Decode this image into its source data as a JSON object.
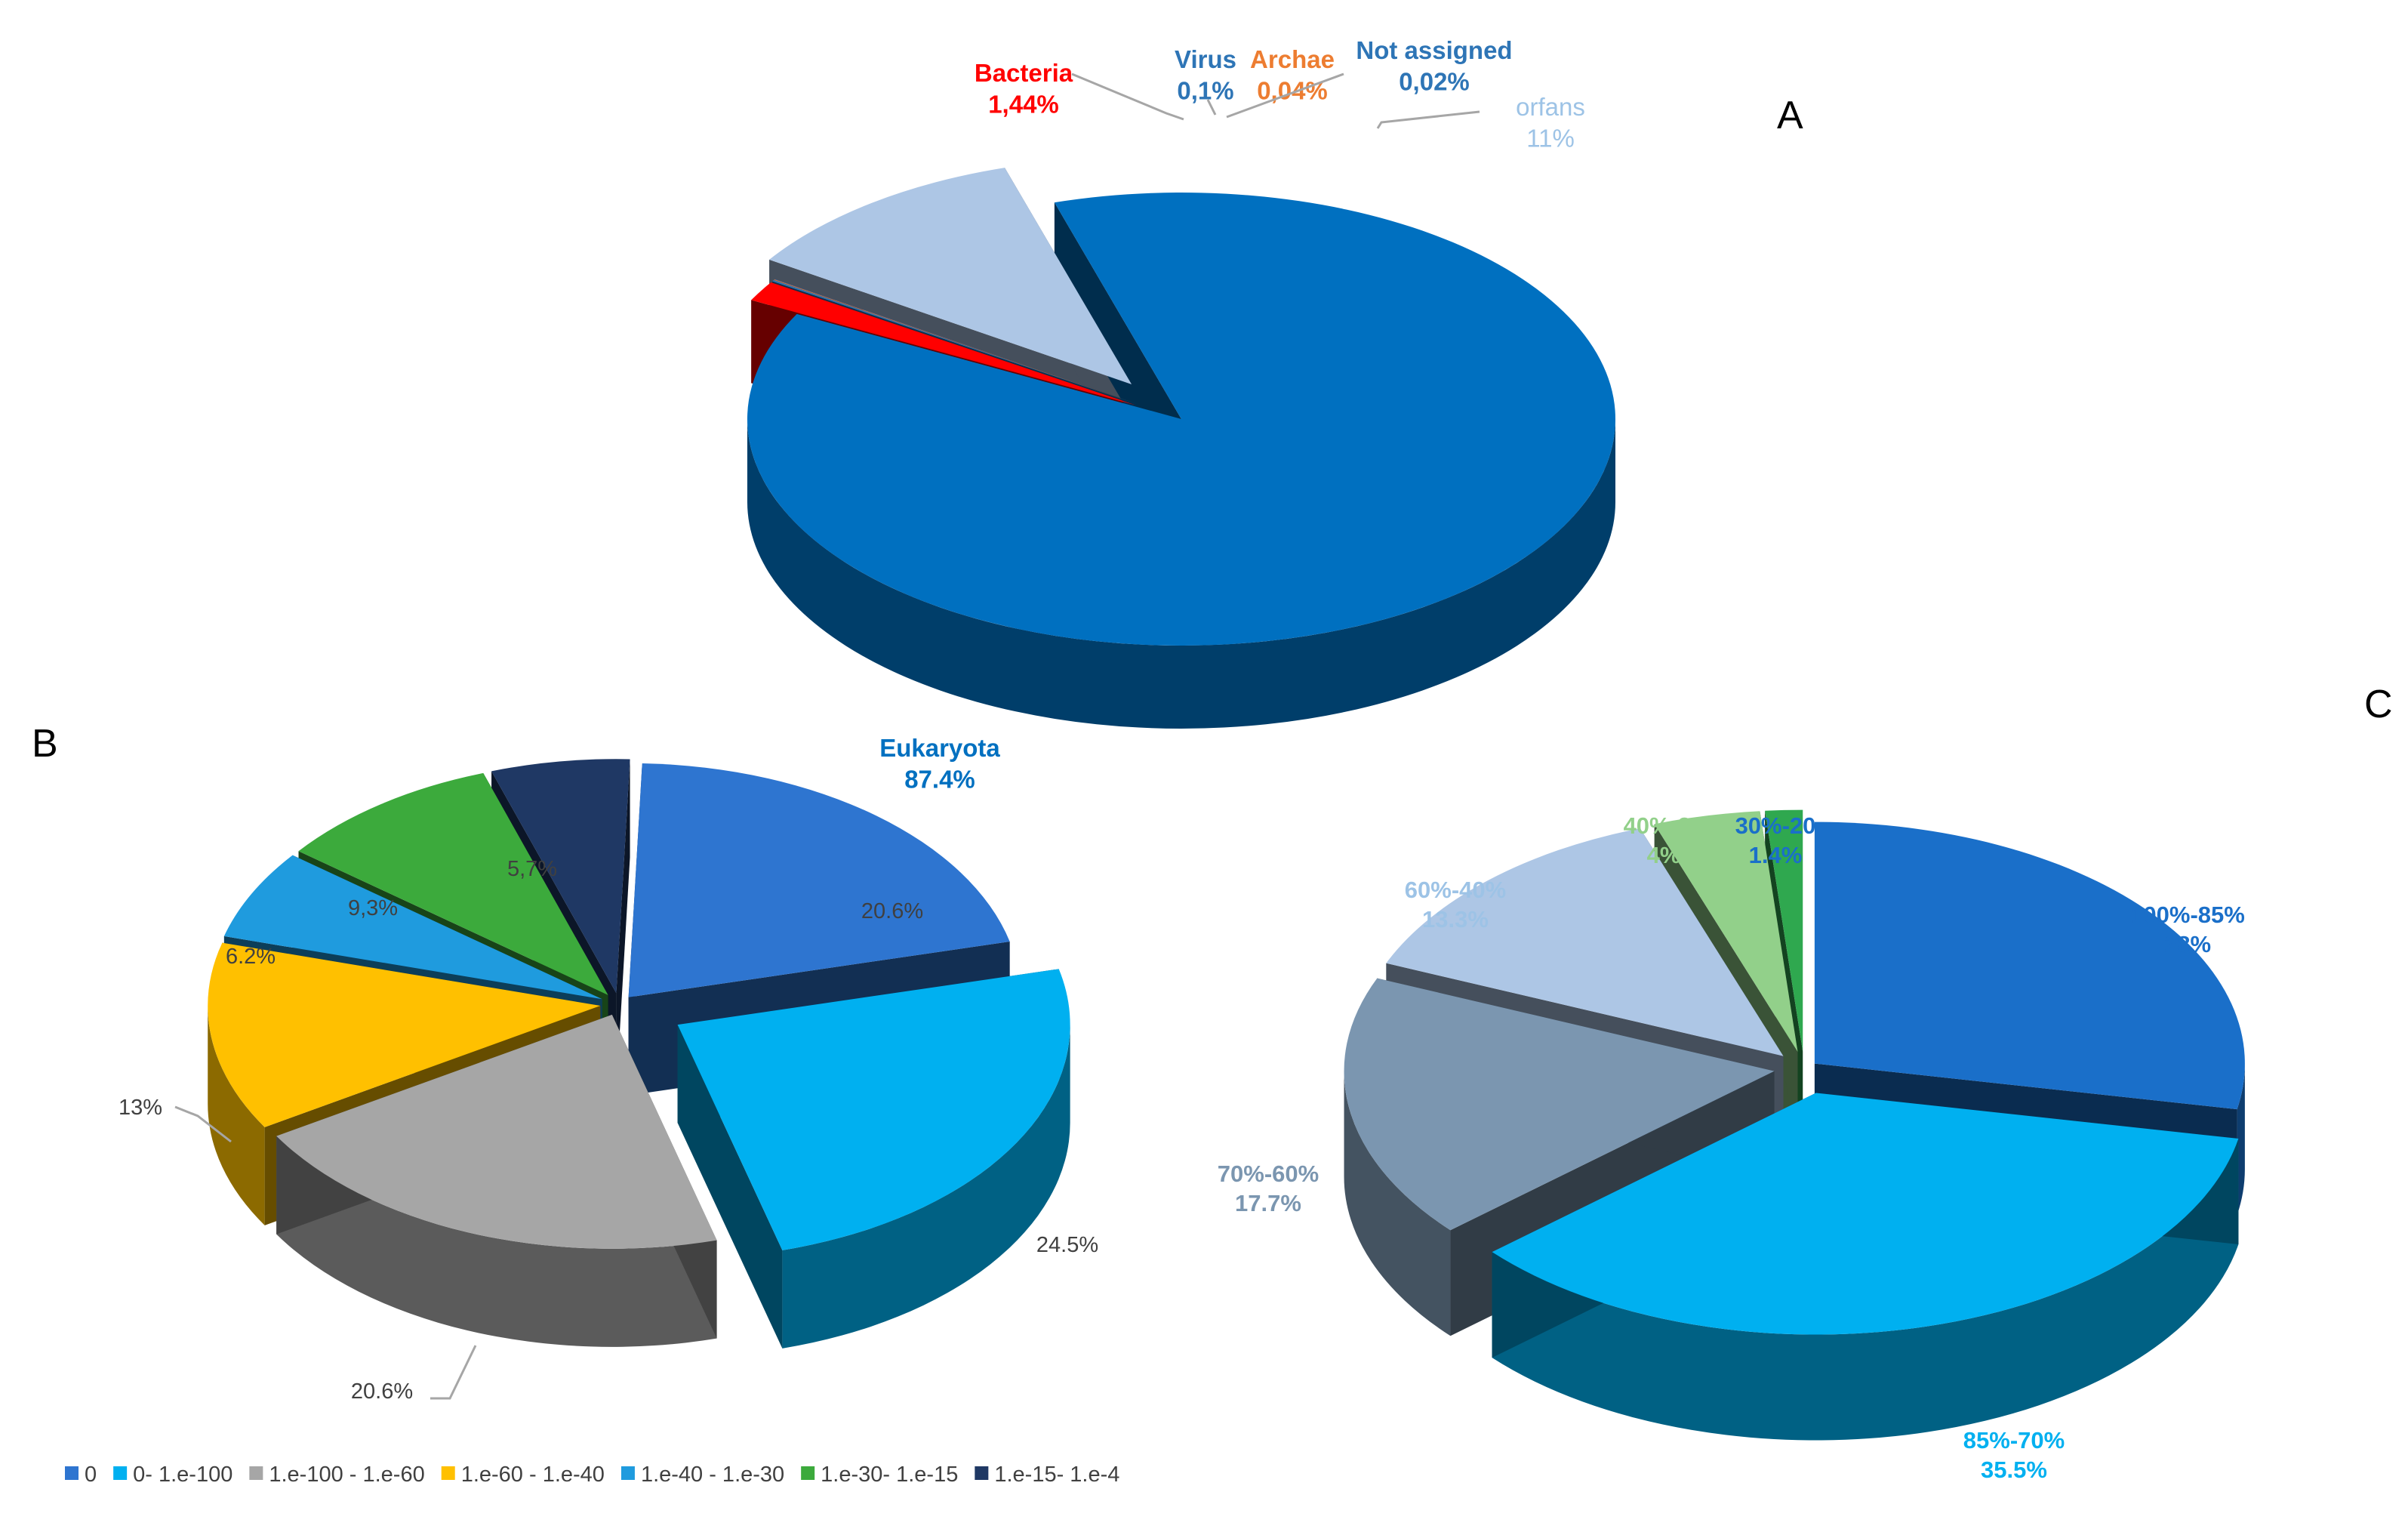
{
  "chart_data": [
    {
      "type": "pie",
      "panel": "A",
      "categories": [
        "Eukaryota",
        "Bacteria",
        "Virus",
        "Archae",
        "Not assigned",
        "orfans"
      ],
      "values": [
        87.4,
        1.44,
        0.1,
        0.04,
        0.02,
        11
      ],
      "value_labels": [
        "87.4%",
        "1,44%",
        "0,1%",
        "0,04%",
        "0,02%",
        "11%"
      ],
      "colors": [
        "#0070C0",
        "#FF0000",
        "#2E75B6",
        "#ED7D31",
        "#4472C4",
        "#ADC6E5"
      ],
      "label_colors": [
        "#0070C0",
        "#FF0000",
        "#2E75B6",
        "#ED7D31",
        "#2E75B6",
        "#9DC3E6"
      ],
      "exploded": [
        "Bacteria",
        "Virus",
        "Archae",
        "Not assigned",
        "orfans"
      ]
    },
    {
      "type": "pie",
      "panel": "B",
      "categories": [
        "0",
        "0- 1.e-100",
        "1.e-100 - 1.e-60",
        "1.e-60 - 1.e-40",
        "1.e-40 - 1.e-30",
        "1.e-30- 1.e-15",
        "1.e-15- 1.e-4"
      ],
      "values": [
        20.6,
        24.5,
        20.6,
        13,
        6.2,
        9.3,
        5.7
      ],
      "value_labels": [
        "20.6%",
        "24.5%",
        "20.6%",
        "13%",
        "6.2%",
        "9,3%",
        "5,7%"
      ],
      "colors": [
        "#2E75D0",
        "#00B0F0",
        "#A6A6A6",
        "#FFC000",
        "#1F9BDE",
        "#3CAA3C",
        "#1F3864"
      ],
      "legend": "bottom"
    },
    {
      "type": "pie",
      "panel": "C",
      "categories": [
        "100%-85%",
        "85%-70%",
        "70%-60%",
        "60%-40%",
        "40%-30",
        "30%-20"
      ],
      "values": [
        28,
        35.5,
        17.7,
        13.3,
        4,
        1.4
      ],
      "value_labels": [
        "28%",
        "35.5%",
        "17.7%",
        "13.3%",
        "4%",
        "1.4%"
      ],
      "colors": [
        "#1A6FC9",
        "#00B0F0",
        "#7B96B0",
        "#ADC6E5",
        "#92D08A",
        "#2FA84F"
      ],
      "label_colors": [
        "#1A6FC9",
        "#00B0F0",
        "#7B96B0",
        "#9DC3E6",
        "#92D08A",
        "#1A6FC9"
      ]
    }
  ],
  "panel_letters": [
    "A",
    "B",
    "C"
  ]
}
